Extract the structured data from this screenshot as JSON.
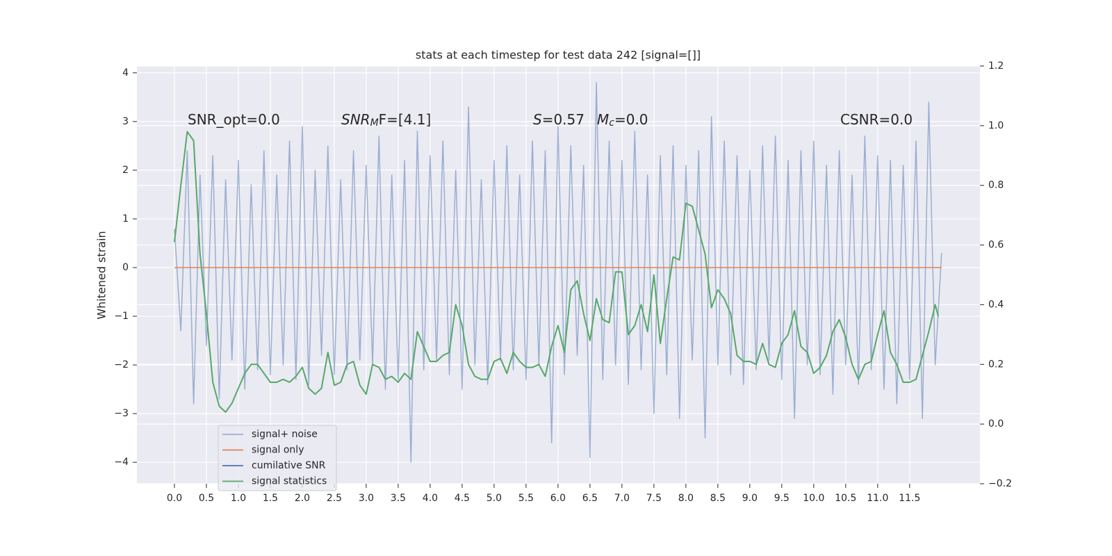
{
  "chart_data": {
    "type": "line",
    "title": "stats at each timestep for test data 242 [signal=[]]",
    "ylabel": "Whitened strain",
    "annotations": [
      [
        {
          "text": "SNR_opt=0.0"
        }
      ],
      [
        {
          "text": "SNR",
          "italic": true
        },
        {
          "text": "M",
          "italic": true,
          "sub": true
        },
        {
          "text": "F=[4.1]"
        }
      ],
      [
        {
          "text": "S",
          "italic": true
        },
        {
          "text": "=0.57"
        }
      ],
      [
        {
          "text": "M",
          "italic": true
        },
        {
          "text": "c",
          "italic": true,
          "sub": true
        },
        {
          "text": "=0.0"
        }
      ],
      [
        {
          "text": "CSNR=0.0"
        }
      ]
    ],
    "xlim": [
      -0.587,
      12.6
    ],
    "ylim": [
      -4.44,
      4.14
    ],
    "y2lim": [
      -0.2,
      1.2
    ],
    "xticks": [
      {
        "value": 0,
        "label": "0.0"
      },
      0.5,
      {
        "value": 1,
        "label": "1.0"
      },
      1.5,
      {
        "value": 2,
        "label": "2.0"
      },
      2.5,
      {
        "value": 3,
        "label": "3.0"
      },
      3.5,
      {
        "value": 4,
        "label": "4.0"
      },
      4.5,
      {
        "value": 5,
        "label": "5.0"
      },
      5.5,
      {
        "value": 6,
        "label": "6.0"
      },
      6.5,
      {
        "value": 7,
        "label": "7.0"
      },
      7.5,
      {
        "value": 8,
        "label": "8.0"
      },
      8.5,
      {
        "value": 9,
        "label": "9.0"
      },
      9.5,
      {
        "value": 10,
        "label": "10.0"
      },
      10.5,
      {
        "value": 11,
        "label": "11.0"
      },
      11.5
    ],
    "yticks": [
      {
        "value": -4,
        "label": "−4"
      },
      {
        "value": -3,
        "label": "−3"
      },
      {
        "value": -2,
        "label": "−2"
      },
      {
        "value": -1,
        "label": "−1"
      },
      0,
      1,
      2,
      3,
      4
    ],
    "y2ticks": [
      {
        "value": -0.2,
        "label": "−0.2"
      },
      {
        "value": 0,
        "label": "0.0"
      },
      0.2,
      0.4,
      0.6,
      0.8,
      {
        "value": 1,
        "label": "1.0"
      },
      1.2
    ],
    "grid": true,
    "legend": "lower left",
    "series": [
      {
        "name": "signal+ noise",
        "color": "#4c72b0",
        "alpha": 0.5,
        "x": [
          0,
          0.1,
          0.2,
          0.3,
          0.4,
          0.5,
          0.6,
          0.7,
          0.8,
          0.9,
          1,
          1.1,
          1.2,
          1.3,
          1.4,
          1.5,
          1.6,
          1.7,
          1.8,
          1.9,
          2,
          2.1,
          2.2,
          2.3,
          2.4,
          2.5,
          2.6,
          2.7,
          2.8,
          2.9,
          3,
          3.1,
          3.2,
          3.3,
          3.4,
          3.5,
          3.6,
          3.7,
          3.8,
          3.9,
          4,
          4.1,
          4.2,
          4.3,
          4.4,
          4.5,
          4.6,
          4.7,
          4.8,
          4.9,
          5,
          5.1,
          5.2,
          5.3,
          5.4,
          5.5,
          5.6,
          5.7,
          5.8,
          5.9,
          6,
          6.1,
          6.2,
          6.3,
          6.4,
          6.5,
          6.6,
          6.7,
          6.8,
          6.9,
          7,
          7.1,
          7.2,
          7.3,
          7.4,
          7.5,
          7.6,
          7.7,
          7.8,
          7.9,
          8,
          8.1,
          8.2,
          8.3,
          8.4,
          8.5,
          8.6,
          8.7,
          8.8,
          8.9,
          9,
          9.1,
          9.2,
          9.3,
          9.4,
          9.5,
          9.6,
          9.7,
          9.8,
          9.9,
          10,
          10.1,
          10.2,
          10.3,
          10.4,
          10.5,
          10.6,
          10.7,
          10.8,
          10.9,
          11,
          11.1,
          11.2,
          11.3,
          11.4,
          11.5,
          11.6,
          11.7,
          11.8,
          11.9,
          12
        ],
        "values": [
          0.8,
          -1.3,
          2.4,
          -2.8,
          1.9,
          -1.6,
          2.3,
          -2.7,
          1.8,
          -1.9,
          2.2,
          -2.5,
          1.7,
          -2.1,
          2.4,
          -2.2,
          1.9,
          -2.0,
          2.6,
          -2.3,
          2.9,
          -2.4,
          2.0,
          -1.8,
          2.5,
          -2.2,
          1.8,
          -2.1,
          2.4,
          -1.9,
          2.1,
          -2.0,
          2.7,
          -2.5,
          1.9,
          -2.3,
          2.2,
          -4.0,
          2.8,
          -2.1,
          2.3,
          -1.9,
          2.6,
          -2.2,
          2.0,
          -2.5,
          3.3,
          -2.0,
          1.8,
          -2.4,
          2.2,
          -1.9,
          2.5,
          -2.1,
          1.9,
          -2.3,
          2.6,
          -2.0,
          2.4,
          -3.6,
          2.9,
          -2.2,
          2.5,
          -1.8,
          2.1,
          -3.9,
          3.8,
          -2.3,
          2.6,
          -2.0,
          2.2,
          -2.4,
          2.8,
          -2.1,
          1.9,
          -3.0,
          2.3,
          -2.2,
          2.5,
          -3.1,
          2.1,
          -1.9,
          2.4,
          -3.5,
          3.1,
          -2.0,
          2.6,
          -2.2,
          2.3,
          -2.4,
          2.0,
          -2.1,
          2.5,
          -1.9,
          2.7,
          -2.3,
          2.2,
          -3.1,
          2.4,
          -2.0,
          2.6,
          -2.2,
          2.1,
          -2.6,
          2.4,
          -2.0,
          1.9,
          -2.4,
          2.7,
          -2.1,
          2.3,
          -2.5,
          2.2,
          -2.8,
          2.1,
          -2.3,
          2.6,
          -3.1,
          3.4,
          -2.0,
          0.3
        ]
      },
      {
        "name": "signal only",
        "color": "#dd8452",
        "x": [
          0,
          12
        ],
        "values": [
          0,
          0
        ]
      },
      {
        "name": "cumilative SNR",
        "color": "#4c72b0",
        "x": [],
        "values": []
      },
      {
        "name": "signal statistics",
        "color": "#55a868",
        "axis": "y2",
        "x": [
          0,
          0.1,
          0.2,
          0.3,
          0.4,
          0.5,
          0.6,
          0.7,
          0.8,
          0.9,
          1,
          1.1,
          1.2,
          1.3,
          1.4,
          1.5,
          1.6,
          1.7,
          1.8,
          1.9,
          2,
          2.1,
          2.2,
          2.3,
          2.4,
          2.5,
          2.6,
          2.7,
          2.8,
          2.9,
          3,
          3.1,
          3.2,
          3.3,
          3.4,
          3.5,
          3.6,
          3.7,
          3.8,
          3.9,
          4,
          4.1,
          4.2,
          4.3,
          4.4,
          4.5,
          4.6,
          4.7,
          4.8,
          4.9,
          5,
          5.1,
          5.2,
          5.3,
          5.4,
          5.5,
          5.6,
          5.7,
          5.8,
          5.9,
          6,
          6.1,
          6.2,
          6.3,
          6.4,
          6.5,
          6.6,
          6.7,
          6.8,
          6.9,
          7,
          7.1,
          7.2,
          7.3,
          7.4,
          7.5,
          7.6,
          7.7,
          7.8,
          7.9,
          8,
          8.1,
          8.2,
          8.3,
          8.4,
          8.5,
          8.6,
          8.7,
          8.8,
          8.9,
          9,
          9.1,
          9.2,
          9.3,
          9.4,
          9.5,
          9.6,
          9.7,
          9.8,
          9.9,
          10,
          10.1,
          10.2,
          10.3,
          10.4,
          10.5,
          10.6,
          10.7,
          10.8,
          10.9,
          11,
          11.1,
          11.2,
          11.3,
          11.4,
          11.5,
          11.6,
          11.7,
          11.8,
          11.9,
          11.95
        ],
        "values": [
          0.61,
          0.8,
          0.98,
          0.95,
          0.57,
          0.37,
          0.14,
          0.06,
          0.04,
          0.07,
          0.12,
          0.17,
          0.2,
          0.2,
          0.17,
          0.14,
          0.14,
          0.15,
          0.14,
          0.16,
          0.19,
          0.12,
          0.1,
          0.12,
          0.24,
          0.13,
          0.14,
          0.2,
          0.21,
          0.13,
          0.1,
          0.2,
          0.19,
          0.15,
          0.16,
          0.14,
          0.17,
          0.15,
          0.31,
          0.26,
          0.21,
          0.21,
          0.23,
          0.24,
          0.4,
          0.33,
          0.2,
          0.16,
          0.15,
          0.15,
          0.21,
          0.22,
          0.17,
          0.24,
          0.21,
          0.19,
          0.19,
          0.2,
          0.16,
          0.26,
          0.33,
          0.24,
          0.45,
          0.48,
          0.37,
          0.28,
          0.42,
          0.35,
          0.34,
          0.51,
          0.51,
          0.3,
          0.33,
          0.4,
          0.31,
          0.5,
          0.27,
          0.42,
          0.56,
          0.55,
          0.74,
          0.73,
          0.65,
          0.57,
          0.39,
          0.45,
          0.42,
          0.37,
          0.23,
          0.21,
          0.21,
          0.2,
          0.27,
          0.2,
          0.19,
          0.27,
          0.3,
          0.38,
          0.26,
          0.24,
          0.17,
          0.19,
          0.23,
          0.31,
          0.35,
          0.29,
          0.2,
          0.15,
          0.2,
          0.21,
          0.3,
          0.38,
          0.24,
          0.2,
          0.14,
          0.14,
          0.15,
          0.23,
          0.31,
          0.4,
          0.36
        ]
      }
    ]
  }
}
